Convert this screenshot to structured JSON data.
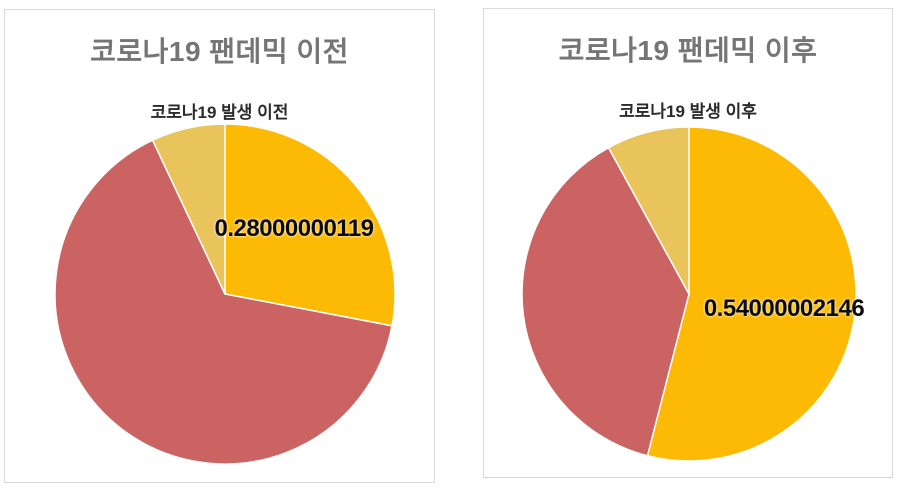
{
  "page": {
    "background_color": "#ffffff",
    "card_border_color": "#d9d9d9"
  },
  "chart_data": [
    {
      "type": "pie",
      "title": "코로나19 팬데믹 이전",
      "subtitle": "코로나19 발생 이전",
      "legend": "none",
      "start_angle_deg": 0,
      "direction": "clockwise",
      "slices": [
        {
          "name": "yellow-segment",
          "value": 0.28,
          "color": "#FCBA04",
          "label": "0.28000000119"
        },
        {
          "name": "red-segment",
          "value": 0.65,
          "color": "#CB6363",
          "label": ""
        },
        {
          "name": "olive-segment",
          "value": 0.07,
          "color": "#E9C45B",
          "label": ""
        }
      ],
      "label_color": "#0b0b0b",
      "title_color": "#757575",
      "subtitle_color": "#2b2b2b"
    },
    {
      "type": "pie",
      "title": "코로나19 팬데믹 이후",
      "subtitle": "코로나19 발생 이후",
      "legend": "none",
      "start_angle_deg": 0,
      "direction": "clockwise",
      "slices": [
        {
          "name": "yellow-segment",
          "value": 0.54,
          "color": "#FCBA04",
          "label": "0.54000002146"
        },
        {
          "name": "red-segment",
          "value": 0.38,
          "color": "#CB6363",
          "label": ""
        },
        {
          "name": "olive-segment",
          "value": 0.08,
          "color": "#E9C45B",
          "label": ""
        }
      ],
      "label_color": "#0b0b0b",
      "title_color": "#757575",
      "subtitle_color": "#2b2b2b"
    }
  ]
}
